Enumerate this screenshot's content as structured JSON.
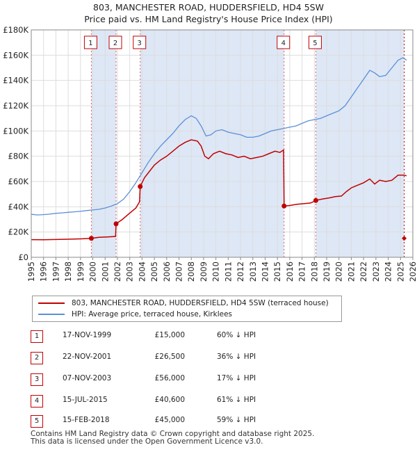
{
  "title_line1": "803, MANCHESTER ROAD, HUDDERSFIELD, HD4 5SW",
  "title_line2": "Price paid vs. HM Land Registry's House Price Index (HPI)",
  "colors": {
    "property": "#c00000",
    "hpi": "#5b8fd6",
    "shade": "#dde7f6",
    "grid": "#dddddd"
  },
  "chart_data": {
    "type": "line",
    "xlim": [
      1995,
      2026
    ],
    "ylim": [
      0,
      180000
    ],
    "yticks": [
      0,
      20000,
      40000,
      60000,
      80000,
      100000,
      120000,
      140000,
      160000,
      180000
    ],
    "ytick_labels": [
      "£0",
      "£20K",
      "£40K",
      "£60K",
      "£80K",
      "£100K",
      "£120K",
      "£140K",
      "£160K",
      "£180K"
    ],
    "xticks": [
      1995,
      1996,
      1997,
      1998,
      1999,
      2000,
      2001,
      2002,
      2003,
      2004,
      2005,
      2006,
      2007,
      2008,
      2009,
      2010,
      2011,
      2012,
      2013,
      2014,
      2015,
      2016,
      2017,
      2018,
      2019,
      2020,
      2021,
      2022,
      2023,
      2024,
      2025,
      2026
    ],
    "shaded_ranges": [
      [
        1999.88,
        2001.89
      ],
      [
        2003.85,
        2015.54
      ],
      [
        2018.12,
        2025.3
      ]
    ],
    "series": [
      {
        "name": "803, MANCHESTER ROAD, HUDDERSFIELD, HD4 5SW (terraced house)",
        "color": "#c00000",
        "points": [
          [
            1995.0,
            14000
          ],
          [
            1996.0,
            13900
          ],
          [
            1997.0,
            14100
          ],
          [
            1998.0,
            14300
          ],
          [
            1999.0,
            14600
          ],
          [
            1999.88,
            15000
          ],
          [
            2000.5,
            15800
          ],
          [
            2001.3,
            16200
          ],
          [
            2001.85,
            16500
          ],
          [
            2001.89,
            26500
          ],
          [
            2002.4,
            30000
          ],
          [
            2003.0,
            35000
          ],
          [
            2003.5,
            39000
          ],
          [
            2003.8,
            44000
          ],
          [
            2003.85,
            56000
          ],
          [
            2004.2,
            63000
          ],
          [
            2004.6,
            68000
          ],
          [
            2005.0,
            73000
          ],
          [
            2005.5,
            77000
          ],
          [
            2006.0,
            80000
          ],
          [
            2006.5,
            84000
          ],
          [
            2007.0,
            88000
          ],
          [
            2007.5,
            91000
          ],
          [
            2008.0,
            93000
          ],
          [
            2008.5,
            92000
          ],
          [
            2008.8,
            88000
          ],
          [
            2009.1,
            80000
          ],
          [
            2009.4,
            78000
          ],
          [
            2009.8,
            82000
          ],
          [
            2010.3,
            84000
          ],
          [
            2010.8,
            82000
          ],
          [
            2011.3,
            81000
          ],
          [
            2011.8,
            79000
          ],
          [
            2012.3,
            80000
          ],
          [
            2012.8,
            78000
          ],
          [
            2013.3,
            79000
          ],
          [
            2013.8,
            80000
          ],
          [
            2014.3,
            82000
          ],
          [
            2014.8,
            84000
          ],
          [
            2015.2,
            83000
          ],
          [
            2015.5,
            85000
          ],
          [
            2015.54,
            40600
          ],
          [
            2016.0,
            41000
          ],
          [
            2016.6,
            42000
          ],
          [
            2017.2,
            42500
          ],
          [
            2017.7,
            43000
          ],
          [
            2018.12,
            45000
          ],
          [
            2018.6,
            46000
          ],
          [
            2019.2,
            47000
          ],
          [
            2019.7,
            48000
          ],
          [
            2020.2,
            48500
          ],
          [
            2020.6,
            52000
          ],
          [
            2021.0,
            55000
          ],
          [
            2021.5,
            57000
          ],
          [
            2022.0,
            59000
          ],
          [
            2022.5,
            62000
          ],
          [
            2022.9,
            58000
          ],
          [
            2023.3,
            61000
          ],
          [
            2023.8,
            60000
          ],
          [
            2024.3,
            61000
          ],
          [
            2024.8,
            65000
          ],
          [
            2025.3,
            65000
          ],
          [
            2025.5,
            64500
          ]
        ]
      },
      {
        "name": "HPI: Average price, terraced house, Kirklees",
        "color": "#5b8fd6",
        "points": [
          [
            1995.0,
            34000
          ],
          [
            1995.5,
            33500
          ],
          [
            1996.0,
            33800
          ],
          [
            1996.5,
            34200
          ],
          [
            1997.0,
            34800
          ],
          [
            1997.5,
            35200
          ],
          [
            1998.0,
            35600
          ],
          [
            1998.5,
            36000
          ],
          [
            1999.0,
            36400
          ],
          [
            1999.5,
            37000
          ],
          [
            2000.0,
            37500
          ],
          [
            2000.5,
            38000
          ],
          [
            2001.0,
            39000
          ],
          [
            2001.5,
            40500
          ],
          [
            2002.0,
            42500
          ],
          [
            2002.5,
            46000
          ],
          [
            2003.0,
            52000
          ],
          [
            2003.5,
            59000
          ],
          [
            2004.0,
            67000
          ],
          [
            2004.5,
            75000
          ],
          [
            2005.0,
            82000
          ],
          [
            2005.5,
            88000
          ],
          [
            2006.0,
            93000
          ],
          [
            2006.5,
            98000
          ],
          [
            2007.0,
            104000
          ],
          [
            2007.5,
            109000
          ],
          [
            2008.0,
            112000
          ],
          [
            2008.4,
            110000
          ],
          [
            2008.8,
            104000
          ],
          [
            2009.2,
            96000
          ],
          [
            2009.6,
            97000
          ],
          [
            2010.0,
            100000
          ],
          [
            2010.5,
            101000
          ],
          [
            2011.0,
            99000
          ],
          [
            2011.5,
            98000
          ],
          [
            2012.0,
            97000
          ],
          [
            2012.5,
            95000
          ],
          [
            2013.0,
            95000
          ],
          [
            2013.5,
            96000
          ],
          [
            2014.0,
            98000
          ],
          [
            2014.5,
            100000
          ],
          [
            2015.0,
            101000
          ],
          [
            2015.5,
            102000
          ],
          [
            2016.0,
            103000
          ],
          [
            2016.5,
            104000
          ],
          [
            2017.0,
            106000
          ],
          [
            2017.5,
            108000
          ],
          [
            2018.0,
            109000
          ],
          [
            2018.5,
            110000
          ],
          [
            2019.0,
            112000
          ],
          [
            2019.5,
            114000
          ],
          [
            2020.0,
            116000
          ],
          [
            2020.5,
            120000
          ],
          [
            2021.0,
            127000
          ],
          [
            2021.5,
            134000
          ],
          [
            2022.0,
            141000
          ],
          [
            2022.5,
            148000
          ],
          [
            2022.9,
            146000
          ],
          [
            2023.3,
            143000
          ],
          [
            2023.8,
            144000
          ],
          [
            2024.3,
            150000
          ],
          [
            2024.8,
            156000
          ],
          [
            2025.2,
            158000
          ],
          [
            2025.5,
            156000
          ]
        ]
      }
    ],
    "sales": [
      {
        "label": "1",
        "x": 1999.88,
        "y": 15000,
        "date": "17-NOV-1999",
        "price": "£15,000",
        "hpi_diff": "60% ↓ HPI"
      },
      {
        "label": "2",
        "x": 2001.89,
        "y": 26500,
        "date": "22-NOV-2001",
        "price": "£26,500",
        "hpi_diff": "36% ↓ HPI"
      },
      {
        "label": "3",
        "x": 2003.85,
        "y": 56000,
        "date": "07-NOV-2003",
        "price": "£56,000",
        "hpi_diff": "17% ↓ HPI"
      },
      {
        "label": "4",
        "x": 2015.54,
        "y": 40600,
        "date": "15-JUL-2015",
        "price": "£40,600",
        "hpi_diff": "61% ↓ HPI"
      },
      {
        "label": "5",
        "x": 2018.12,
        "y": 45000,
        "date": "15-FEB-2018",
        "price": "£45,000",
        "hpi_diff": "59% ↓ HPI"
      }
    ],
    "latest_marker": {
      "x": 2025.3,
      "y": 15000
    }
  },
  "legend": {
    "property_label": "803, MANCHESTER ROAD, HUDDERSFIELD, HD4 5SW (terraced house)",
    "hpi_label": "HPI: Average price, terraced house, Kirklees"
  },
  "footer": {
    "line1": "Contains HM Land Registry data © Crown copyright and database right 2025.",
    "line2": "This data is licensed under the Open Government Licence v3.0."
  }
}
